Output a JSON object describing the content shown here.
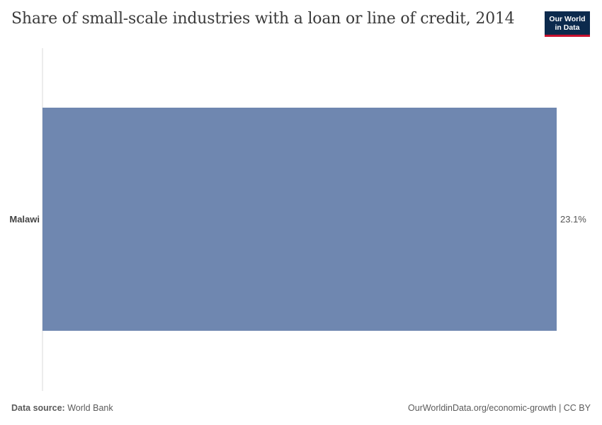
{
  "header": {
    "title": "Share of small-scale industries with a loan or line of credit, 2014",
    "logo_line1": "Our World",
    "logo_line2": "in Data"
  },
  "footer": {
    "source_label": "Data source:",
    "source_value": "World Bank",
    "url": "OurWorldinData.org/economic-growth | CC BY"
  },
  "colors": {
    "bar": "#6f87b0",
    "axis": "#d9d9d9",
    "logo_bg": "#0c2a4d",
    "logo_accent": "#c8102e"
  },
  "chart_data": {
    "type": "bar",
    "orientation": "horizontal",
    "categories": [
      "Malawi"
    ],
    "values": [
      23.1
    ],
    "value_labels": [
      "23.1%"
    ],
    "xlim": [
      0,
      23.1
    ],
    "unit": "%"
  }
}
